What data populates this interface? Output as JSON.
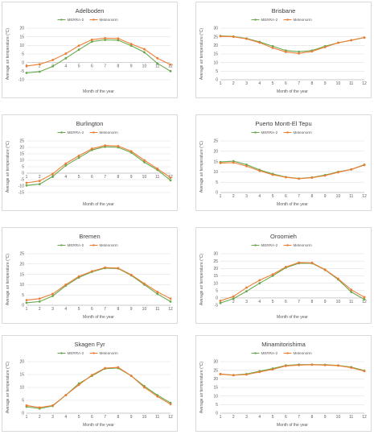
{
  "colors": {
    "merra": "#6aa84f",
    "meteonorm": "#ed7d31",
    "grid": "#d9d9d9"
  },
  "chart_data": [
    {
      "type": "line",
      "title": "Adelboden",
      "xlabel": "Month of the year",
      "ylabel": "Average air temperature (°C)",
      "ylim": [
        -10,
        20
      ],
      "yticks": [
        -10,
        -5,
        0,
        5,
        10,
        15,
        20
      ],
      "x": [
        1,
        2,
        3,
        4,
        5,
        6,
        7,
        8,
        9,
        10,
        11,
        12
      ],
      "legend_position": "top",
      "series": [
        {
          "name": "MERRA-2",
          "values": [
            -6,
            -5.3,
            -2.2,
            2.5,
            7.5,
            12.2,
            13.2,
            13,
            9.8,
            6,
            -0.5,
            -5
          ]
        },
        {
          "name": "Meteonorm",
          "values": [
            -2,
            -1,
            1.5,
            5.2,
            9.8,
            13.3,
            14.2,
            14,
            10.8,
            7.8,
            2.5,
            -1.2
          ]
        }
      ]
    },
    {
      "type": "line",
      "title": "Brisbane",
      "xlabel": "Month of the year",
      "ylabel": "Average air temperature (°C)",
      "ylim": [
        0,
        30
      ],
      "yticks": [
        0,
        5,
        10,
        15,
        20,
        25,
        30
      ],
      "x": [
        1,
        2,
        3,
        4,
        5,
        6,
        7,
        8,
        9,
        10,
        11,
        12
      ],
      "legend_position": "top",
      "series": [
        {
          "name": "MERRA-2",
          "values": [
            25.5,
            25.2,
            24,
            22,
            19.5,
            17,
            16.3,
            17,
            19.5,
            21.5,
            23,
            24.5
          ]
        },
        {
          "name": "Meteonorm",
          "values": [
            25.3,
            25,
            23.8,
            21.6,
            18.5,
            16.2,
            15.3,
            16.5,
            19,
            21.5,
            23,
            24.6
          ]
        }
      ]
    },
    {
      "type": "line",
      "title": "Burlington",
      "xlabel": "Month of the year",
      "ylabel": "Average air temperature (°C)",
      "ylim": [
        -15,
        25
      ],
      "yticks": [
        -15,
        -10,
        -5,
        0,
        5,
        10,
        15,
        20,
        25
      ],
      "x": [
        1,
        2,
        3,
        4,
        5,
        6,
        7,
        8,
        9,
        10,
        11,
        12
      ],
      "legend_position": "top",
      "series": [
        {
          "name": "MERRA-2",
          "values": [
            -9.5,
            -8.5,
            -2.5,
            6,
            12,
            18,
            20.5,
            20,
            16,
            8.5,
            2.5,
            -5.5
          ]
        },
        {
          "name": "Meteonorm",
          "values": [
            -7.5,
            -6,
            -0.5,
            7.5,
            13.5,
            19,
            21.5,
            21,
            17,
            10,
            3.5,
            -3.5
          ]
        }
      ]
    },
    {
      "type": "line",
      "title": "Puerto Montt-El Tepu",
      "xlabel": "Month of the year",
      "ylabel": "Average air temperature (°C)",
      "ylim": [
        0,
        25
      ],
      "yticks": [
        0,
        5,
        10,
        15,
        20,
        25
      ],
      "x": [
        1,
        2,
        3,
        4,
        5,
        6,
        7,
        8,
        9,
        10,
        11,
        12
      ],
      "legend_position": "top",
      "series": [
        {
          "name": "MERRA-2",
          "values": [
            14.8,
            15.2,
            13.5,
            11,
            9,
            7.5,
            6.8,
            7.3,
            8.5,
            10,
            11.2,
            13.5
          ]
        },
        {
          "name": "Meteonorm",
          "values": [
            14.3,
            14.5,
            12.8,
            10.5,
            8.6,
            7.4,
            6.7,
            7.2,
            8.2,
            9.8,
            11.2,
            13.3
          ]
        }
      ]
    },
    {
      "type": "line",
      "title": "Bremen",
      "xlabel": "Month of the year",
      "ylabel": "Average air temperature (°C)",
      "ylim": [
        0,
        25
      ],
      "yticks": [
        0,
        5,
        10,
        15,
        20,
        25
      ],
      "x": [
        1,
        2,
        3,
        4,
        5,
        6,
        7,
        8,
        9,
        10,
        11,
        12
      ],
      "legend_position": "top",
      "series": [
        {
          "name": "MERRA-2",
          "values": [
            1.2,
            1.8,
            4.5,
            9.5,
            13.5,
            16.2,
            18,
            17.8,
            14.5,
            10,
            5.5,
            1.8
          ]
        },
        {
          "name": "Meteonorm",
          "values": [
            2.5,
            3.2,
            5.5,
            10,
            14,
            16.5,
            18.3,
            18,
            14.8,
            10.5,
            6.5,
            3.2
          ]
        }
      ]
    },
    {
      "type": "line",
      "title": "Oroomieh",
      "xlabel": "Month of the year",
      "ylabel": "Average air temperature (°C)",
      "ylim": [
        -5,
        30
      ],
      "yticks": [
        -5,
        0,
        5,
        10,
        15,
        20,
        25,
        30
      ],
      "x": [
        1,
        2,
        3,
        4,
        5,
        6,
        7,
        8,
        9,
        10,
        11,
        12
      ],
      "legend_position": "top",
      "series": [
        {
          "name": "MERRA-2",
          "values": [
            -3.5,
            -0.5,
            4.5,
            10,
            15,
            20.5,
            23.5,
            23.5,
            19,
            12.5,
            4,
            -1
          ]
        },
        {
          "name": "Meteonorm",
          "values": [
            -2,
            1,
            7,
            12,
            16,
            21,
            24,
            23.8,
            19.2,
            13,
            5.5,
            0.5
          ]
        }
      ]
    },
    {
      "type": "line",
      "title": "Skagen Fyr",
      "xlabel": "Month of the year",
      "ylabel": "Average air temperature (°C)",
      "ylim": [
        0,
        20
      ],
      "yticks": [
        0,
        5,
        10,
        15,
        20
      ],
      "x": [
        1,
        2,
        3,
        4,
        5,
        6,
        7,
        8,
        9,
        10,
        11,
        12
      ],
      "legend_position": "top",
      "series": [
        {
          "name": "MERRA-2",
          "values": [
            2.5,
            1.8,
            2.8,
            7,
            11.5,
            14.5,
            17.3,
            17.5,
            14.5,
            10.5,
            7,
            4
          ]
        },
        {
          "name": "Meteonorm",
          "values": [
            3,
            2.2,
            3,
            7,
            11,
            14.8,
            17.5,
            17.8,
            14.5,
            10,
            6.5,
            3.5
          ]
        }
      ]
    },
    {
      "type": "line",
      "title": "Minamitorishima",
      "xlabel": "Month of the year",
      "ylabel": "Average air temperature (°C)",
      "ylim": [
        0,
        30
      ],
      "yticks": [
        0,
        5,
        10,
        15,
        20,
        25,
        30
      ],
      "x": [
        1,
        2,
        3,
        4,
        5,
        6,
        7,
        8,
        9,
        10,
        11,
        12
      ],
      "legend_position": "top",
      "series": [
        {
          "name": "MERRA-2",
          "values": [
            22.8,
            22.2,
            22.8,
            24.5,
            26,
            27.8,
            28.3,
            28.3,
            28.2,
            27.8,
            26.8,
            24.8
          ]
        },
        {
          "name": "Meteonorm",
          "values": [
            22.7,
            22.1,
            22.5,
            24,
            25.5,
            27.5,
            28,
            28.2,
            28,
            27.7,
            26.5,
            24.5
          ]
        }
      ]
    }
  ]
}
